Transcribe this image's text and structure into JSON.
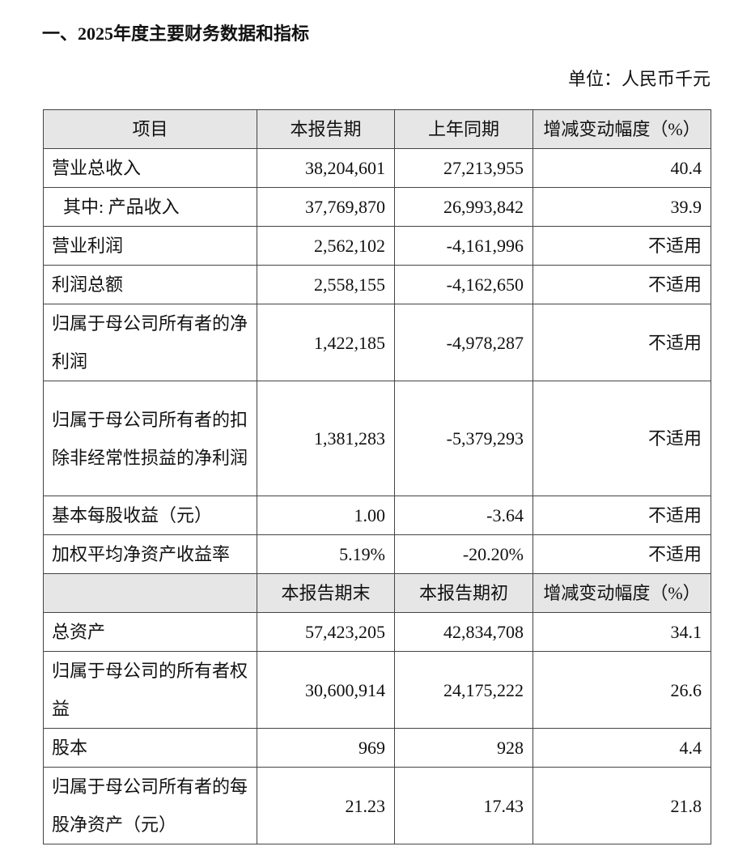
{
  "title": "一、2025年度主要财务数据和指标",
  "unit": "单位：人民币千元",
  "header1": [
    "项目",
    "本报告期",
    "上年同期",
    "增减变动幅度（%）"
  ],
  "rows1": [
    {
      "label": "营业总收入",
      "cur": "38,204,601",
      "prev": "27,213,955",
      "chg": "40.4"
    },
    {
      "label": "其中: 产品收入",
      "cur": "37,769,870",
      "prev": "26,993,842",
      "chg": "39.9"
    },
    {
      "label": "营业利润",
      "cur": "2,562,102",
      "prev": "-4,161,996",
      "chg": "不适用"
    },
    {
      "label": "利润总额",
      "cur": "2,558,155",
      "prev": "-4,162,650",
      "chg": "不适用"
    },
    {
      "label": "归属于母公司所有者的净利润",
      "cur": "1,422,185",
      "prev": "-4,978,287",
      "chg": "不适用"
    },
    {
      "label": "归属于母公司所有者的扣除非经常性损益的净利润",
      "cur": "1,381,283",
      "prev": "-5,379,293",
      "chg": "不适用"
    },
    {
      "label": "基本每股收益（元）",
      "cur": "1.00",
      "prev": "-3.64",
      "chg": "不适用"
    },
    {
      "label": "加权平均净资产收益率",
      "cur": "5.19%",
      "prev": "-20.20%",
      "chg": "不适用"
    }
  ],
  "header2": [
    "",
    "本报告期末",
    "本报告期初",
    "增减变动幅度（%）"
  ],
  "rows2": [
    {
      "label": "总资产",
      "cur": "57,423,205",
      "prev": "42,834,708",
      "chg": "34.1"
    },
    {
      "label": "归属于母公司的所有者权益",
      "cur": "30,600,914",
      "prev": "24,175,222",
      "chg": "26.6"
    },
    {
      "label": "股本",
      "cur": "969",
      "prev": "928",
      "chg": "4.4"
    },
    {
      "label": "归属于母公司所有者的每股净资产（元）",
      "cur": "21.23",
      "prev": "17.43",
      "chg": "21.8"
    }
  ]
}
